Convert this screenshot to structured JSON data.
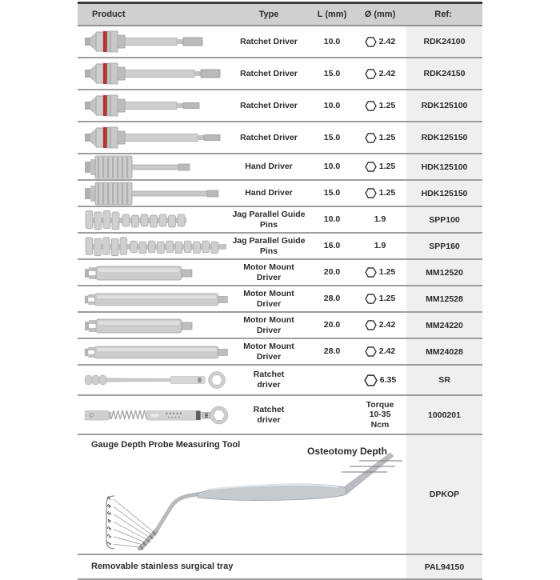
{
  "table": {
    "headers": [
      "Product",
      "Type",
      "L (mm)",
      "Ø (mm)",
      "Ref:"
    ],
    "rows": [
      {
        "image": "ratchet-driver-hex242-l10",
        "type": "Ratchet Driver",
        "length": "10.0",
        "diameter": "2.42",
        "diameter_icon": "hex-socket-icon",
        "ref": "RDK24100"
      },
      {
        "image": "ratchet-driver-hex242-l15",
        "type": "Ratchet Driver",
        "length": "15.0",
        "diameter": "2.42",
        "diameter_icon": "hex-socket-icon",
        "ref": "RDK24150"
      },
      {
        "image": "ratchet-driver-hex125-l10",
        "type": "Ratchet Driver",
        "length": "10.0",
        "diameter": "1.25",
        "diameter_icon": "hex-socket-icon",
        "ref": "RDK125100"
      },
      {
        "image": "ratchet-driver-hex125-l15",
        "type": "Ratchet Driver",
        "length": "15.0",
        "diameter": "1.25",
        "diameter_icon": "hex-socket-icon",
        "ref": "RDK125150"
      },
      {
        "image": "hand-driver-l10",
        "type": "Hand Driver",
        "length": "10.0",
        "diameter": "1.25",
        "diameter_icon": "hex-socket-icon",
        "ref": "HDK125100"
      },
      {
        "image": "hand-driver-l15",
        "type": "Hand Driver",
        "length": "15.0",
        "diameter": "1.25",
        "diameter_icon": "hex-socket-icon",
        "ref": "HDK125150"
      },
      {
        "image": "guide-pin-l10",
        "type": "Jag Parallel Guide\nPins",
        "length": "10.0",
        "diameter": "1.9",
        "diameter_icon": "",
        "ref": "SPP100"
      },
      {
        "image": "guide-pin-l16",
        "type": "Jag Parallel Guide\nPins",
        "length": "16.0",
        "diameter": "1.9",
        "diameter_icon": "",
        "ref": "SPP160"
      },
      {
        "image": "motor-mount-l20",
        "type": "Motor Mount\nDriver",
        "length": "20.0",
        "diameter": "1.25",
        "diameter_icon": "hex-socket-icon",
        "ref": "MM12520"
      },
      {
        "image": "motor-mount-l28",
        "type": "Motor Mount\nDriver",
        "length": "28.0",
        "diameter": "1.25",
        "diameter_icon": "hex-socket-icon",
        "ref": "MM12528"
      },
      {
        "image": "motor-mount-l20",
        "type": "Motor Mount\nDriver",
        "length": "20.0",
        "diameter": "2.42",
        "diameter_icon": "hex-socket-icon",
        "ref": "MM24220"
      },
      {
        "image": "motor-mount-l28",
        "type": "Motor Mount\nDriver",
        "length": "28.0",
        "diameter": "2.42",
        "diameter_icon": "hex-socket-icon",
        "ref": "MM24028"
      },
      {
        "image": "sr-ratchet-wrench",
        "type": "Ratchet\ndriver",
        "length": "",
        "diameter": "6.35",
        "diameter_icon": "hex-socket-icon",
        "ref": "SR"
      },
      {
        "image": "torque-ratchet-wrench",
        "type": "Ratchet\ndriver",
        "length": "",
        "diameter": "Torque\n10-35\nNcm",
        "diameter_icon": "",
        "ref": "1000201"
      }
    ],
    "gauge_section": {
      "title": "Gauge Depth Probe Measuring Tool",
      "annotation": "Osteotomy Depth",
      "depth_scale_labels": [
        "7",
        "6",
        "5",
        "4",
        "3",
        "2",
        "1"
      ],
      "image": "depth-probe",
      "ref": "DPKOP"
    },
    "tray_row": {
      "product": "Removable stainless surgical tray",
      "ref": "PAL94150"
    }
  },
  "colors": {
    "header_bg": "#d0d0d0",
    "ref_column_bg": "#efefef",
    "row_divider": "#9e9e9e",
    "table_top_border": "#3d3d3d",
    "text": "#2b2b2b",
    "red_band": "#b5342c",
    "metal_gray": "#c9c9c9"
  }
}
